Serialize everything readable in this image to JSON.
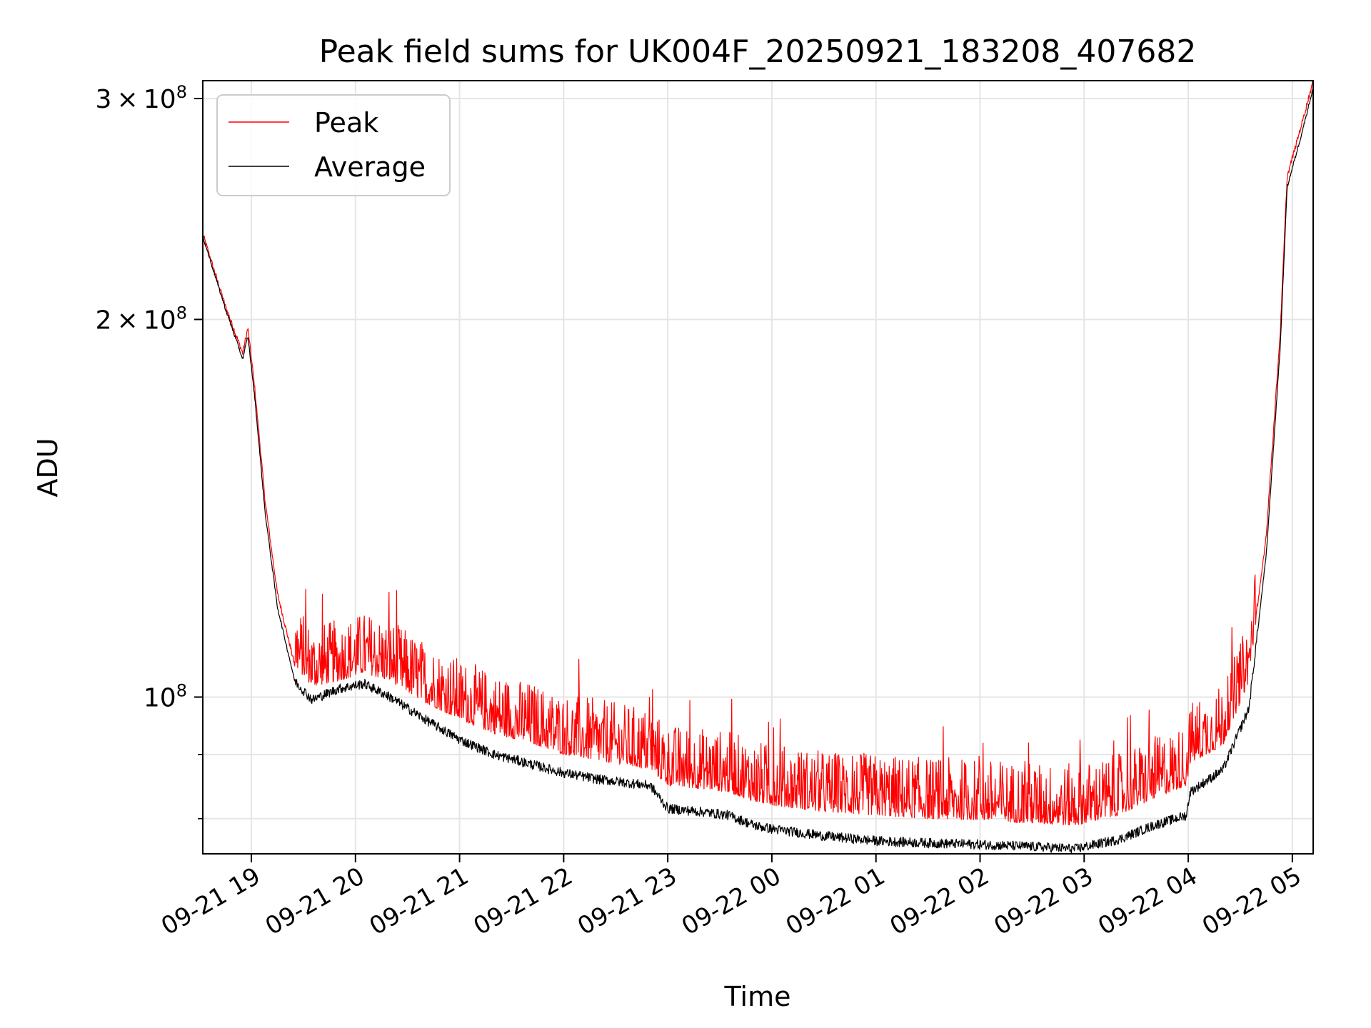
{
  "chart_data": {
    "type": "line",
    "title": "Peak field sums for UK004F_20250921_183208_407682",
    "xlabel": "Time",
    "ylabel": "ADU",
    "x_start": "2025-09-21 18:32",
    "x_end": "2025-09-22 05:12",
    "xlim": [
      "2025-09-21 18:32",
      "2025-09-22 05:12"
    ],
    "ylim": [
      75000000,
      310000000
    ],
    "y_scale": "log",
    "grid": true,
    "legend_position": "upper-left",
    "x_ticks": [
      {
        "label": "09-21 19",
        "value": "2025-09-21 19:00"
      },
      {
        "label": "09-21 20",
        "value": "2025-09-21 20:00"
      },
      {
        "label": "09-21 21",
        "value": "2025-09-21 21:00"
      },
      {
        "label": "09-21 22",
        "value": "2025-09-21 22:00"
      },
      {
        "label": "09-21 23",
        "value": "2025-09-21 23:00"
      },
      {
        "label": "09-22 00",
        "value": "2025-09-22 00:00"
      },
      {
        "label": "09-22 01",
        "value": "2025-09-22 01:00"
      },
      {
        "label": "09-22 02",
        "value": "2025-09-22 02:00"
      },
      {
        "label": "09-22 03",
        "value": "2025-09-22 03:00"
      },
      {
        "label": "09-22 04",
        "value": "2025-09-22 04:00"
      },
      {
        "label": "09-22 05",
        "value": "2025-09-22 05:00"
      }
    ],
    "y_major_ticks": [
      {
        "value": 100000000,
        "mantissa": "",
        "exp": "8"
      },
      {
        "value": 200000000,
        "mantissa": "2",
        "exp": "8"
      },
      {
        "value": 300000000,
        "mantissa": "3",
        "exp": "8"
      }
    ],
    "y_minor_ticks": [
      80000000,
      90000000
    ],
    "x": [
      "2025-09-21 18:32",
      "2025-09-21 18:45",
      "2025-09-21 18:55",
      "2025-09-21 18:58",
      "2025-09-21 19:02",
      "2025-09-21 19:08",
      "2025-09-21 19:15",
      "2025-09-21 19:25",
      "2025-09-21 19:35",
      "2025-09-21 19:50",
      "2025-09-21 20:05",
      "2025-09-21 20:20",
      "2025-09-21 20:40",
      "2025-09-21 21:00",
      "2025-09-21 21:20",
      "2025-09-21 21:40",
      "2025-09-21 22:00",
      "2025-09-21 22:20",
      "2025-09-21 22:50",
      "2025-09-21 23:00",
      "2025-09-21 23:20",
      "2025-09-21 23:35",
      "2025-09-21 23:50",
      "2025-09-22 00:00",
      "2025-09-22 00:30",
      "2025-09-22 01:00",
      "2025-09-22 01:30",
      "2025-09-22 02:00",
      "2025-09-22 02:30",
      "2025-09-22 02:55",
      "2025-09-22 03:20",
      "2025-09-22 03:40",
      "2025-09-22 03:59",
      "2025-09-22 04:01",
      "2025-09-22 04:20",
      "2025-09-22 04:35",
      "2025-09-22 04:45",
      "2025-09-22 04:53",
      "2025-09-22 04:57",
      "2025-09-22 05:05",
      "2025-09-22 05:12"
    ],
    "series": [
      {
        "name": "Peak",
        "color": "#ff0000",
        "values": [
          234000000,
          205000000,
          188000000,
          197000000,
          176000000,
          143000000,
          121000000,
          106000000,
          102000000,
          103000000,
          104500000,
          103000000,
          99000000,
          96000000,
          93500000,
          92000000,
          90000000,
          89000000,
          87500000,
          85000000,
          84500000,
          84000000,
          82500000,
          82000000,
          81000000,
          80500000,
          80000000,
          79800000,
          79300000,
          79000000,
          80500000,
          83000000,
          85000000,
          88500000,
          91500000,
          103000000,
          135000000,
          195000000,
          260000000,
          285000000,
          310000000
        ]
      },
      {
        "name": "Average",
        "color": "#000000",
        "values": [
          233000000,
          204000000,
          186000000,
          194000000,
          173000000,
          140000000,
          118000000,
          103000000,
          99500000,
          101500000,
          102500000,
          100000000,
          96000000,
          92500000,
          90000000,
          88500000,
          87000000,
          86000000,
          85000000,
          81500000,
          81000000,
          80500000,
          79000000,
          78500000,
          77500000,
          76800000,
          76500000,
          76300000,
          76000000,
          75700000,
          77000000,
          79000000,
          80500000,
          84000000,
          87500000,
          98000000,
          130000000,
          190000000,
          255000000,
          280000000,
          306000000
        ]
      }
    ]
  }
}
